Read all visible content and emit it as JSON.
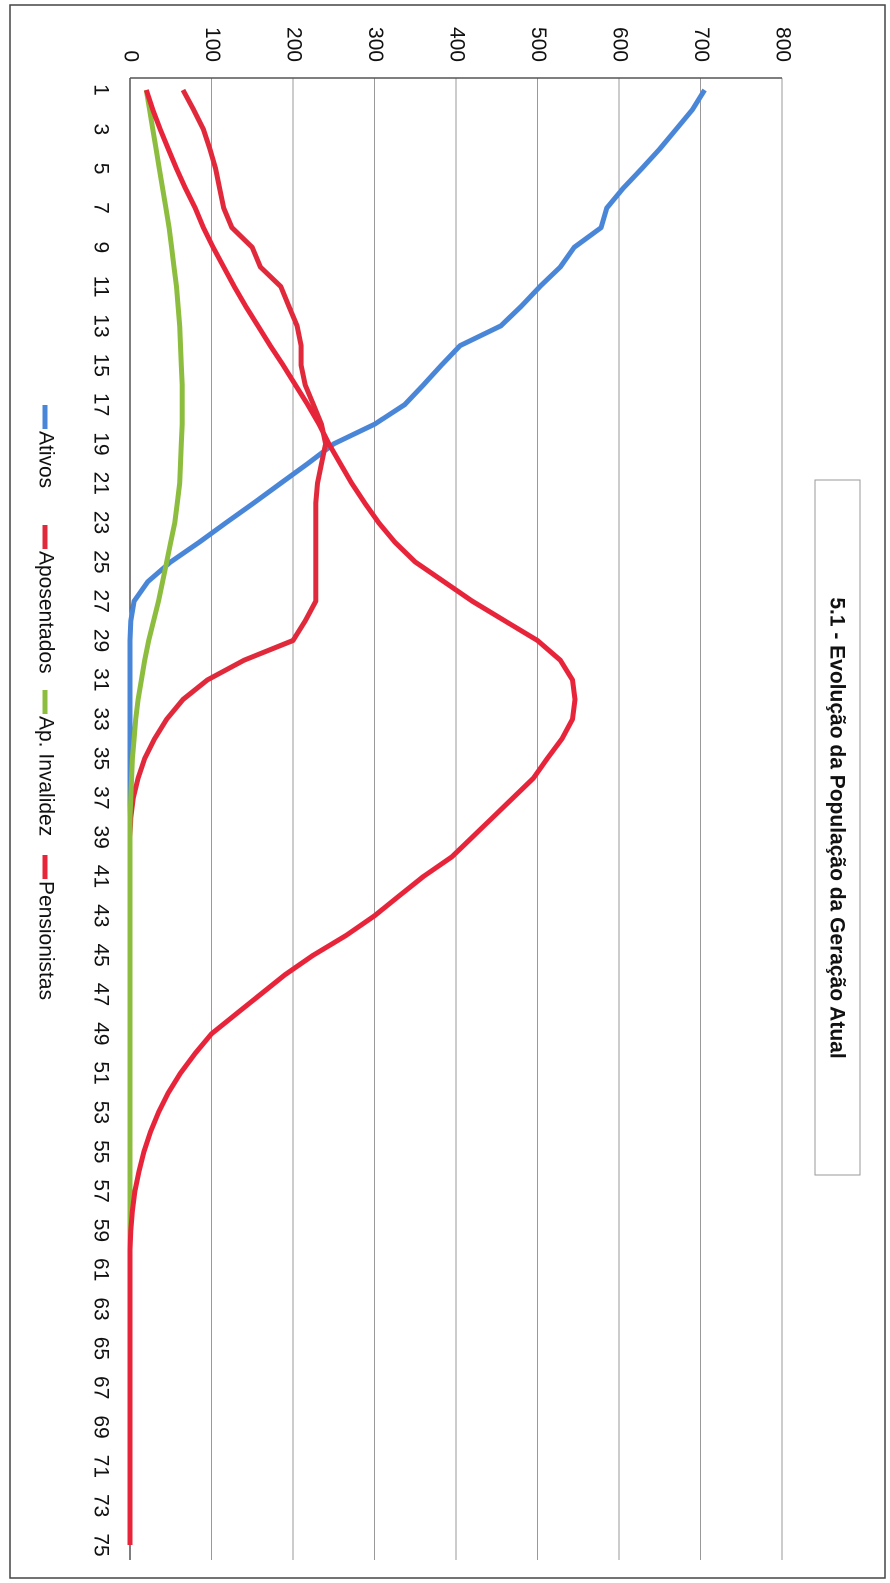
{
  "chart_data": {
    "type": "line",
    "rotation": 90,
    "title": "5.1 - Evolução da População da Geração Atual",
    "categories": [
      "1",
      null,
      "3",
      null,
      "5",
      null,
      "7",
      null,
      "9",
      null,
      "11",
      null,
      "13",
      null,
      "15",
      null,
      "17",
      null,
      "19",
      null,
      "21",
      null,
      "23",
      null,
      "25",
      null,
      "27",
      null,
      "29",
      null,
      "31",
      null,
      "33",
      null,
      "35",
      null,
      "37",
      null,
      "39",
      null,
      "41",
      null,
      "43",
      null,
      "45",
      null,
      "47",
      null,
      "49",
      null,
      "51",
      null,
      "53",
      null,
      "55",
      null,
      "57",
      null,
      "59",
      null,
      "61",
      null,
      "63",
      null,
      "65",
      null,
      "67",
      null,
      "69",
      null,
      "71",
      null,
      "73",
      null,
      "75"
    ],
    "series": [
      {
        "name": "Ativos",
        "color": "#4a86d8",
        "values": [
          705,
          690,
          670,
          650,
          628,
          605,
          585,
          578,
          545,
          528,
          503,
          480,
          455,
          405,
          382,
          360,
          337,
          300,
          250,
          218,
          185,
          152,
          118,
          85,
          50,
          22,
          5,
          1,
          0,
          0,
          0,
          0,
          0,
          0,
          0,
          0,
          0,
          0,
          0,
          0,
          0,
          0,
          0,
          0,
          0,
          0,
          0,
          0,
          0,
          0,
          0,
          0,
          0,
          0,
          0,
          0,
          0,
          0,
          0,
          0,
          0,
          0,
          0,
          0,
          0,
          0,
          0,
          0,
          0,
          0,
          0,
          0,
          0,
          0,
          0
        ]
      },
      {
        "name": "Aposentados",
        "color": "#e02a3c",
        "values": [
          65,
          78,
          90,
          98,
          105,
          110,
          115,
          125,
          150,
          160,
          185,
          195,
          205,
          210,
          210,
          215,
          225,
          235,
          240,
          235,
          230,
          228,
          228,
          228,
          228,
          228,
          228,
          215,
          200,
          140,
          95,
          65,
          45,
          30,
          18,
          10,
          4,
          1,
          0,
          0,
          0,
          0,
          0,
          0,
          0,
          0,
          0,
          0,
          0,
          0,
          0,
          0,
          0,
          0,
          0,
          0,
          0,
          0,
          0,
          0,
          0,
          0,
          0,
          0,
          0,
          0,
          0,
          0,
          0,
          0,
          0,
          0,
          0,
          0,
          0
        ]
      },
      {
        "name": "Ap. Invalidez",
        "color": "#8dbd3e",
        "values": [
          20,
          24,
          28,
          32,
          36,
          40,
          44,
          48,
          51,
          54,
          57,
          59,
          61,
          62,
          63,
          64,
          64,
          64,
          63,
          62,
          61,
          58,
          55,
          50,
          45,
          40,
          35,
          29,
          23,
          18,
          14,
          10,
          7,
          5,
          3,
          2,
          1,
          0,
          0,
          0,
          0,
          0,
          0,
          0,
          0,
          0,
          0,
          0,
          0,
          0,
          0,
          0,
          0,
          0,
          0,
          0,
          0,
          0,
          0,
          0,
          0,
          0,
          0,
          0,
          0,
          0,
          0,
          0,
          0,
          0,
          0,
          0,
          0,
          0,
          0
        ]
      },
      {
        "name": "Pensionistas",
        "color": "#e8243a",
        "values": [
          20,
          28,
          37,
          47,
          57,
          68,
          80,
          90,
          102,
          115,
          128,
          142,
          157,
          172,
          188,
          203,
          218,
          232,
          244,
          258,
          272,
          288,
          305,
          325,
          350,
          385,
          420,
          460,
          500,
          528,
          543,
          546,
          543,
          530,
          512,
          495,
          470,
          445,
          420,
          395,
          360,
          330,
          300,
          265,
          225,
          190,
          160,
          130,
          100,
          80,
          62,
          47,
          35,
          25,
          17,
          11,
          6,
          3,
          1,
          0,
          0,
          0,
          0,
          0,
          0,
          0,
          0,
          0,
          0,
          0,
          0,
          0,
          0,
          0,
          0
        ]
      }
    ],
    "ylim": [
      0,
      800
    ],
    "yticks": [
      0,
      100,
      200,
      300,
      400,
      500,
      600,
      700,
      800
    ],
    "grid": true,
    "legend": "bottom"
  }
}
